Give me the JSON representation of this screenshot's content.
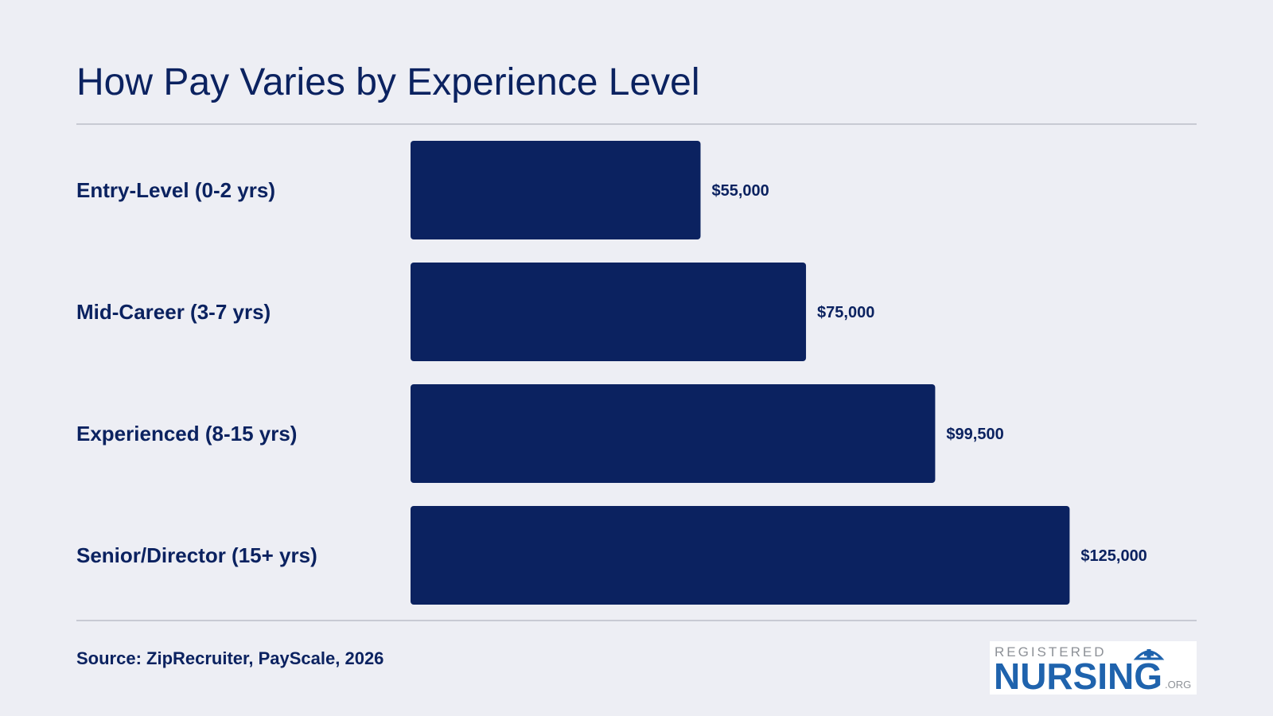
{
  "title": "How Pay Varies by Experience Level",
  "source": "Source: ZipRecruiter, PayScale, 2026",
  "logo": {
    "top_text": "REGISTERED",
    "main_text": "NURSING",
    "suffix": ".ORG"
  },
  "colors": {
    "background": "#edeef4",
    "bar": "#0b2260",
    "text": "#0b2260",
    "logo_blue": "#1f63ad",
    "logo_gray": "#8d9197",
    "rule": "#c8cad3"
  },
  "chart_data": {
    "type": "bar",
    "orientation": "horizontal",
    "categories": [
      "Entry-Level (0-2 yrs)",
      "Mid-Career (3-7 yrs)",
      "Experienced (8-15 yrs)",
      "Senior/Director (15+ yrs)"
    ],
    "values": [
      55000,
      75000,
      99500,
      125000
    ],
    "value_labels": [
      "$55,000",
      "$75,000",
      "$99,500",
      "$125,000"
    ],
    "title": "How Pay Varies by Experience Level",
    "xlabel": "",
    "ylabel": "",
    "grid": false,
    "legend": "none"
  }
}
